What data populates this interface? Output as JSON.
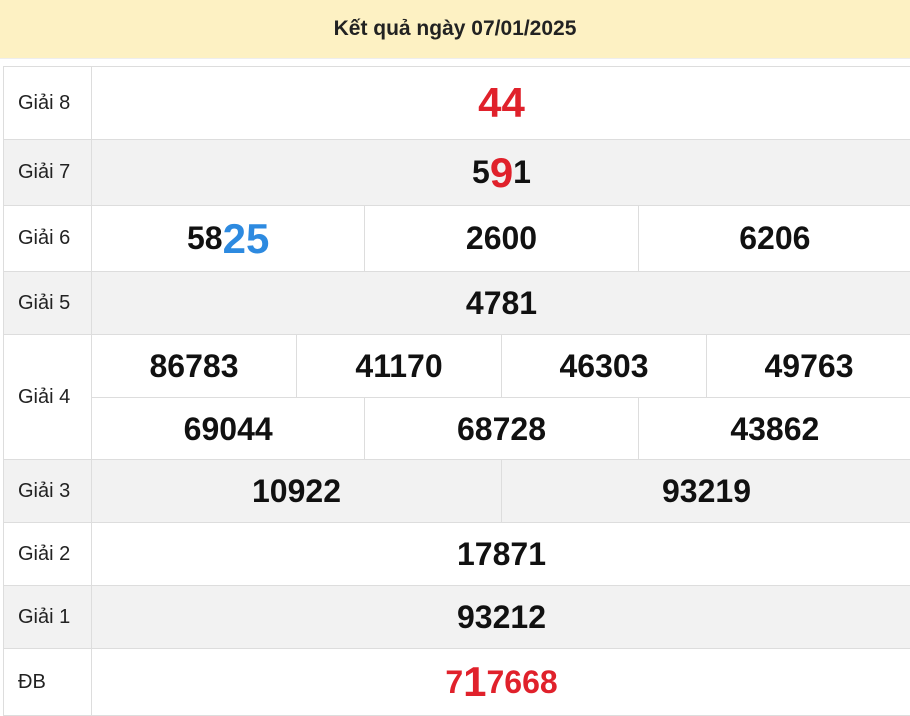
{
  "header": {
    "title": "Kết quả ngày 07/01/2025"
  },
  "table": {
    "rows": [
      {
        "label": "Giải 8",
        "shaded": false,
        "lines": [
          [
            [
              {
                "text": "44",
                "color": "#e0212b",
                "emphasis": true
              }
            ]
          ]
        ]
      },
      {
        "label": "Giải 7",
        "shaded": true,
        "lines": [
          [
            [
              {
                "text": "5"
              },
              {
                "text": "9",
                "color": "#e0212b",
                "emphasis": true
              },
              {
                "text": "1"
              }
            ]
          ]
        ]
      },
      {
        "label": "Giải 6",
        "shaded": false,
        "lines": [
          [
            [
              {
                "text": "58"
              },
              {
                "text": "25",
                "color": "#2d8ae0",
                "emphasis": true
              }
            ],
            [
              {
                "text": "2600"
              }
            ],
            [
              {
                "text": "6206"
              }
            ]
          ]
        ]
      },
      {
        "label": "Giải 5",
        "shaded": true,
        "lines": [
          [
            [
              {
                "text": "4781"
              }
            ]
          ]
        ]
      },
      {
        "label": "Giải 4",
        "shaded": false,
        "lines": [
          [
            [
              {
                "text": "86783"
              }
            ],
            [
              {
                "text": "41170"
              }
            ],
            [
              {
                "text": "46303"
              }
            ],
            [
              {
                "text": "49763"
              }
            ]
          ],
          [
            [
              {
                "text": "69044"
              }
            ],
            [
              {
                "text": "68728"
              }
            ],
            [
              {
                "text": "43862"
              }
            ]
          ]
        ]
      },
      {
        "label": "Giải 3",
        "shaded": true,
        "lines": [
          [
            [
              {
                "text": "10922"
              }
            ],
            [
              {
                "text": "93219"
              }
            ]
          ]
        ]
      },
      {
        "label": "Giải 2",
        "shaded": false,
        "lines": [
          [
            [
              {
                "text": "17871"
              }
            ]
          ]
        ]
      },
      {
        "label": "Giải 1",
        "shaded": true,
        "lines": [
          [
            [
              {
                "text": "93212"
              }
            ]
          ]
        ]
      },
      {
        "label": "ĐB",
        "shaded": false,
        "lines": [
          [
            [
              {
                "text": "7",
                "color": "#e0212b"
              },
              {
                "text": "1",
                "color": "#e0212b",
                "emphasis": true
              },
              {
                "text": "7668",
                "color": "#e0212b"
              }
            ]
          ]
        ]
      }
    ]
  }
}
